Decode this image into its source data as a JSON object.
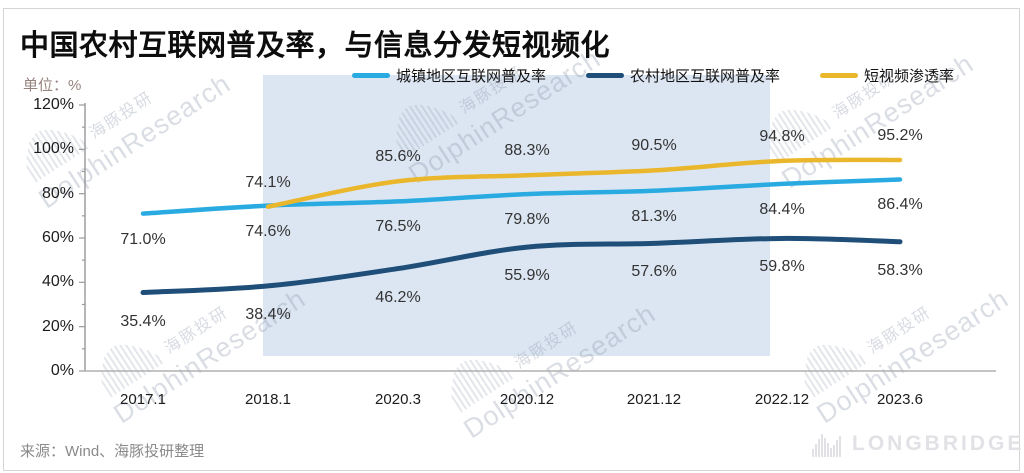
{
  "card": {
    "title": "中国农村互联网普及率，与信息分发短视频化",
    "unit_label": "单位：%",
    "source": "来源：Wind、海豚投研整理",
    "brand": "LONGBRIDGE",
    "watermark_en": "DolphinResearch",
    "watermark_cn": "海豚投研"
  },
  "legend": [
    {
      "label": "城镇地区互联网普及率",
      "color": "#29abe2"
    },
    {
      "label": "农村地区互联网普及率",
      "color": "#1f4e79"
    },
    {
      "label": "短视频渗透率",
      "color": "#eab72c"
    }
  ],
  "chart_data": {
    "type": "line",
    "title": "中国农村互联网普及率，与信息分发短视频化",
    "categories": [
      "2017.1",
      "2018.1",
      "2020.3",
      "2020.12",
      "2021.12",
      "2022.12",
      "2023.6"
    ],
    "series": [
      {
        "name": "城镇地区互联网普及率",
        "color": "#29abe2",
        "values": [
          71.0,
          74.6,
          76.5,
          79.8,
          81.3,
          84.4,
          86.4
        ]
      },
      {
        "name": "农村地区互联网普及率",
        "color": "#1f4e79",
        "values": [
          35.4,
          38.4,
          46.2,
          55.9,
          57.6,
          59.8,
          58.3
        ]
      },
      {
        "name": "短视频渗透率",
        "color": "#eab72c",
        "values": [
          null,
          74.1,
          85.6,
          88.3,
          90.5,
          94.8,
          95.2
        ]
      }
    ],
    "ylabel": "%",
    "ylim": [
      0,
      120
    ],
    "ytick_step": 20,
    "ytick_labels": [
      "0%",
      "20%",
      "40%",
      "60%",
      "80%",
      "100%",
      "120%"
    ],
    "grid": false,
    "legend_position": "top",
    "highlight_band": {
      "from": "2018.1",
      "to": "2022.12",
      "color": "#dce6f2"
    }
  }
}
